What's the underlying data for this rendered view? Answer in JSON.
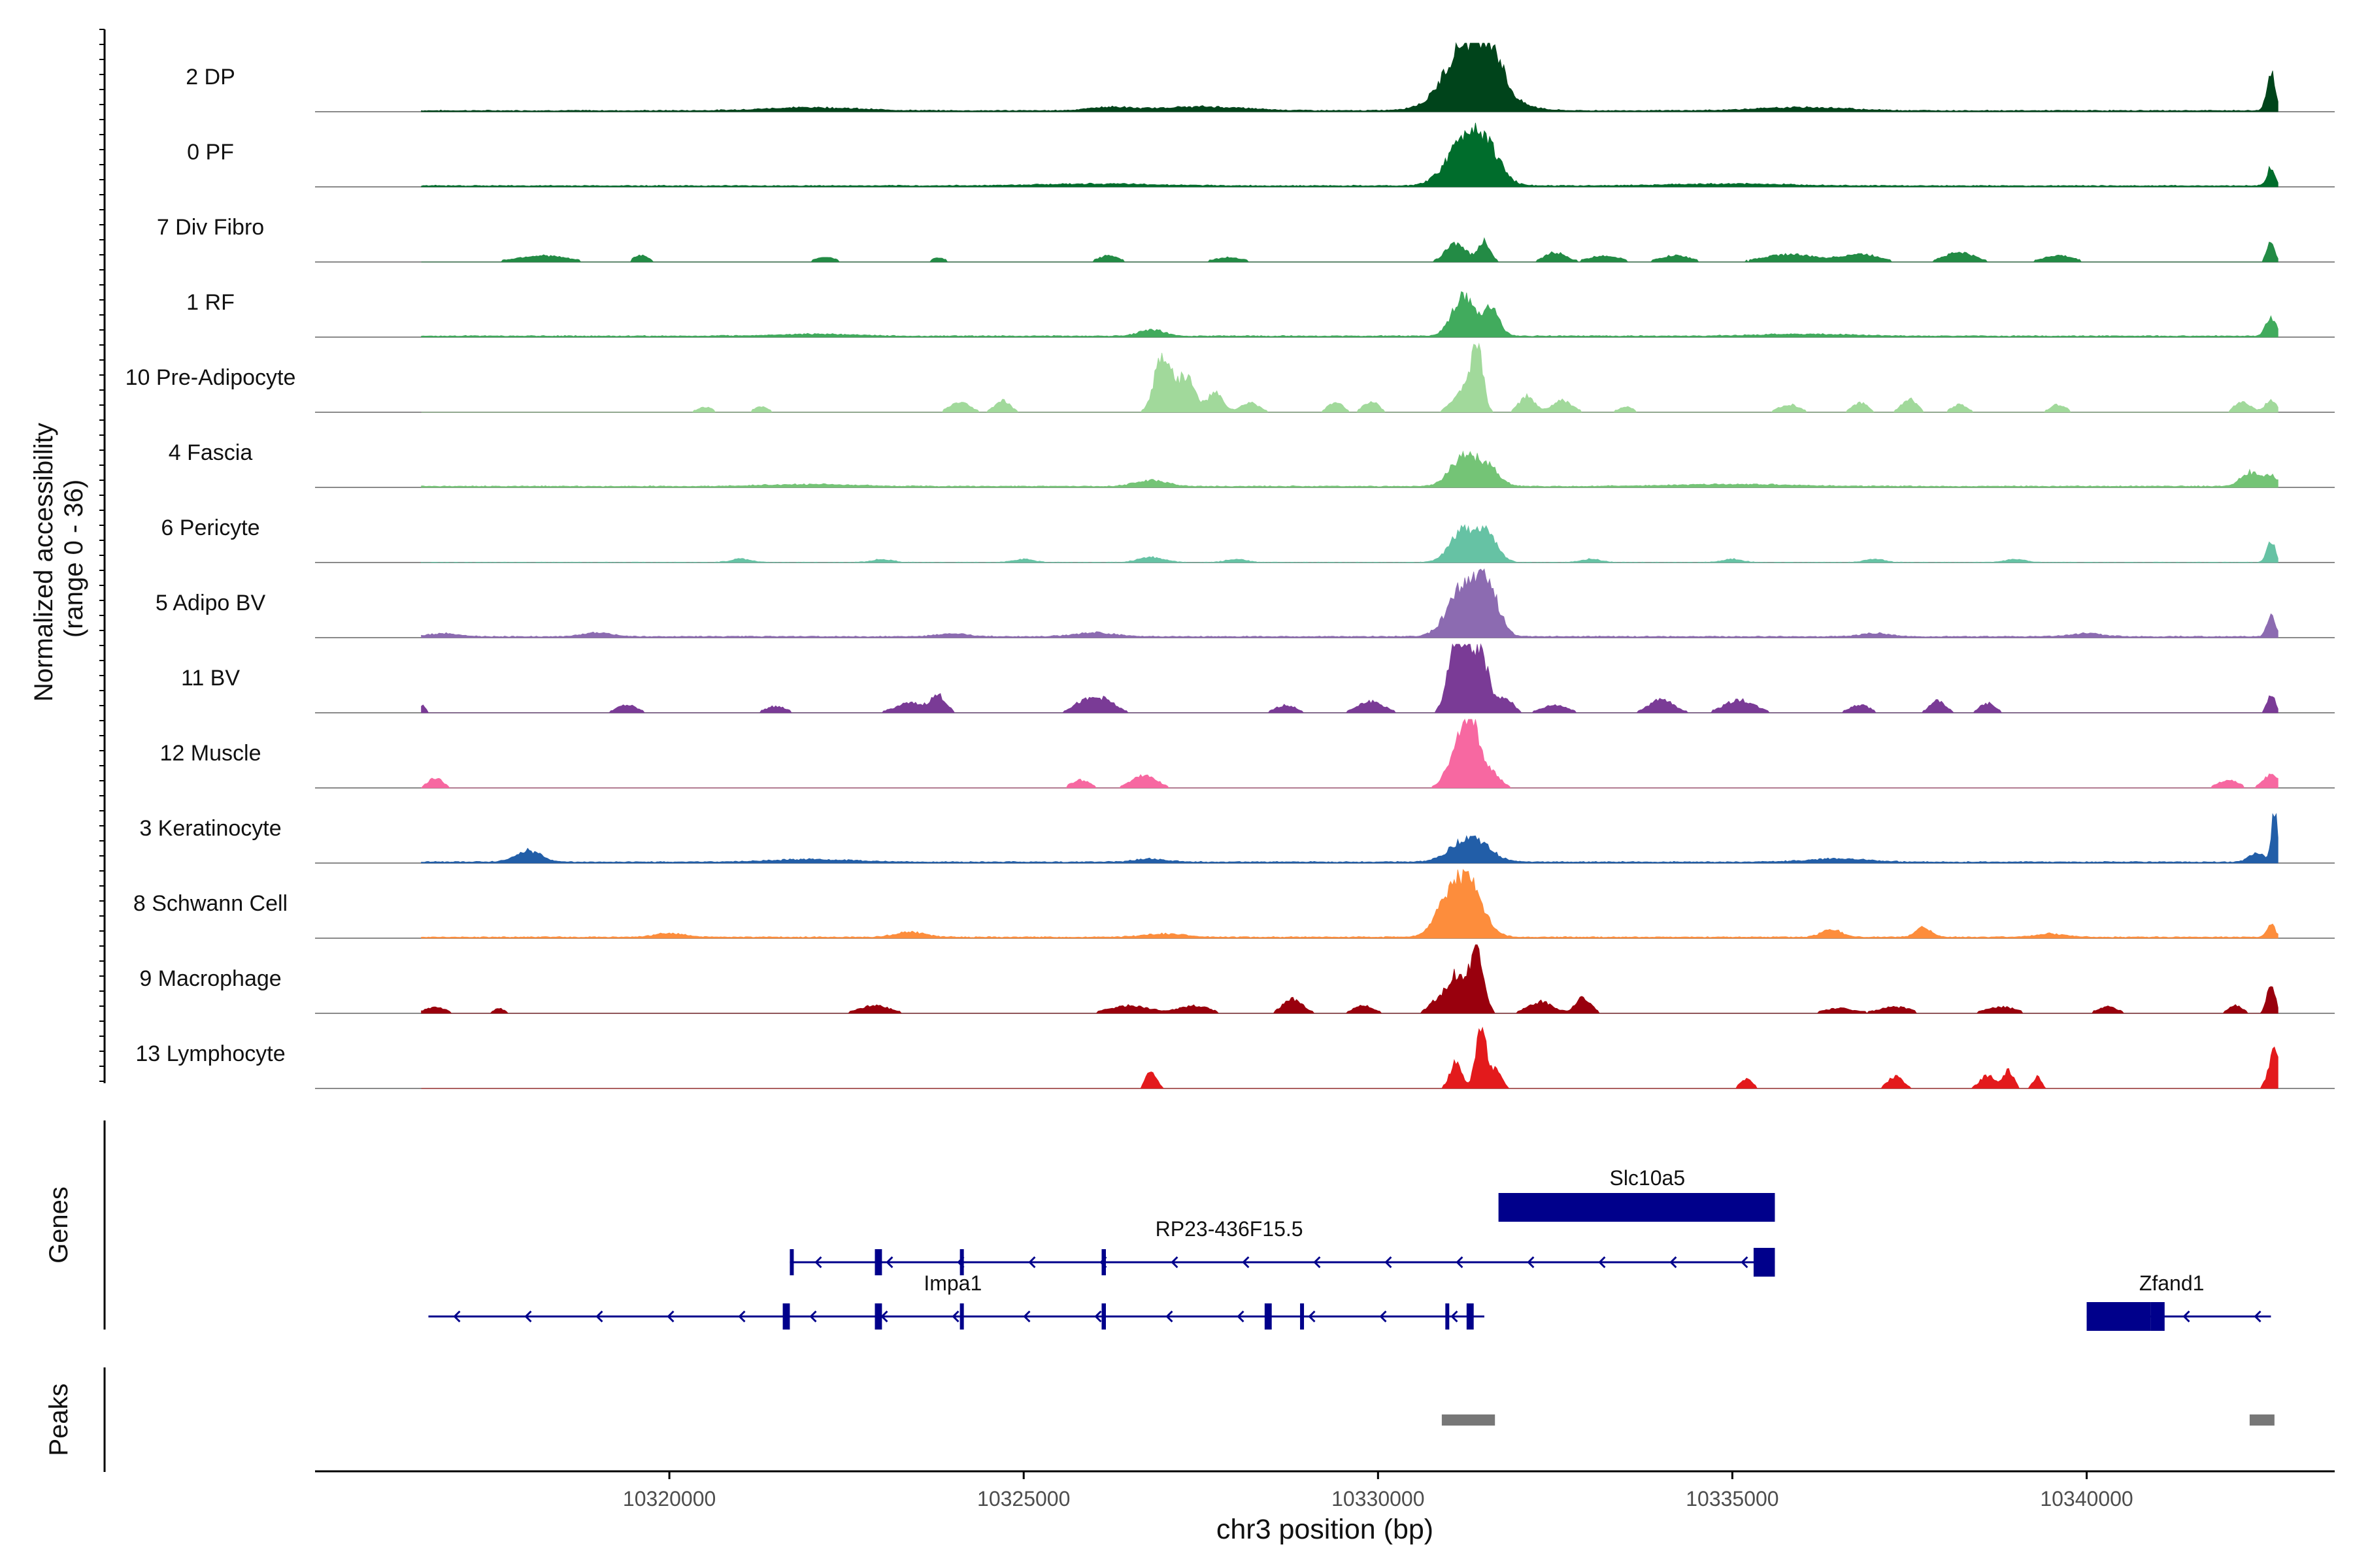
{
  "chart_data": {
    "type": "area",
    "title": "",
    "x_axis": {
      "label": "chr3 position (bp)",
      "range": [
        10315000,
        10343500
      ],
      "ticks": [
        10320000,
        10325000,
        10330000,
        10335000,
        10340000
      ],
      "tick_labels": [
        "10320000",
        "10325000",
        "10330000",
        "10335000",
        "10340000"
      ]
    },
    "y_axis": {
      "label_line1": "Normalized accessibility",
      "label_line2": "(range 0 - 36)",
      "range": [
        0,
        36
      ]
    },
    "tracks": [
      {
        "name": "2 DP",
        "color": "#00441b",
        "style": "dense",
        "peaks": [
          [
            10331200,
            0.65,
            320
          ],
          [
            10331600,
            0.62,
            220
          ],
          [
            10331350,
            0.45,
            600
          ],
          [
            10342600,
            0.6,
            80
          ],
          [
            10327500,
            0.06,
            900
          ],
          [
            10322000,
            0.05,
            900
          ],
          [
            10336000,
            0.05,
            900
          ],
          [
            10326200,
            0.05,
            400
          ]
        ]
      },
      {
        "name": "0 PF",
        "color": "#006d2c",
        "style": "dense",
        "peaks": [
          [
            10331200,
            0.6,
            350
          ],
          [
            10331500,
            0.55,
            300
          ],
          [
            10342600,
            0.28,
            80
          ],
          [
            10326000,
            0.03,
            1200
          ],
          [
            10335000,
            0.03,
            1200
          ]
        ]
      },
      {
        "name": "7 Div Fibro",
        "color": "#238b45",
        "style": "blocky",
        "peaks": [
          [
            10331100,
            0.3,
            200
          ],
          [
            10331500,
            0.32,
            120
          ],
          [
            10342600,
            0.3,
            80
          ],
          [
            10318200,
            0.1,
            500
          ],
          [
            10319600,
            0.1,
            150
          ],
          [
            10322200,
            0.08,
            200
          ],
          [
            10323800,
            0.06,
            150
          ],
          [
            10326200,
            0.1,
            200
          ],
          [
            10327900,
            0.07,
            300
          ],
          [
            10332500,
            0.15,
            200
          ],
          [
            10333200,
            0.1,
            300
          ],
          [
            10334200,
            0.1,
            300
          ],
          [
            10335800,
            0.12,
            500
          ],
          [
            10336800,
            0.12,
            400
          ],
          [
            10338200,
            0.15,
            300
          ],
          [
            10339600,
            0.1,
            300
          ]
        ]
      },
      {
        "name": "1 RF",
        "color": "#41ab5d",
        "style": "dense",
        "peaks": [
          [
            10331200,
            0.6,
            220
          ],
          [
            10331600,
            0.42,
            160
          ],
          [
            10326800,
            0.1,
            250
          ],
          [
            10342600,
            0.3,
            100
          ],
          [
            10322000,
            0.03,
            800
          ],
          [
            10336000,
            0.03,
            900
          ]
        ]
      },
      {
        "name": "10 Pre-Adipocyte",
        "color": "#a1d99b",
        "style": "blocky",
        "peaks": [
          [
            10331400,
            1.0,
            110
          ],
          [
            10331200,
            0.35,
            200
          ],
          [
            10327000,
            0.7,
            160
          ],
          [
            10327300,
            0.55,
            160
          ],
          [
            10326900,
            0.3,
            140
          ],
          [
            10327700,
            0.3,
            160
          ],
          [
            10328200,
            0.15,
            180
          ],
          [
            10332100,
            0.25,
            150
          ],
          [
            10332600,
            0.18,
            200
          ],
          [
            10329900,
            0.17,
            150
          ],
          [
            10329400,
            0.15,
            150
          ],
          [
            10324700,
            0.18,
            150
          ],
          [
            10324100,
            0.15,
            200
          ],
          [
            10335800,
            0.12,
            200
          ],
          [
            10336800,
            0.15,
            150
          ],
          [
            10337500,
            0.2,
            150
          ],
          [
            10338200,
            0.12,
            150
          ],
          [
            10339600,
            0.12,
            150
          ],
          [
            10342200,
            0.18,
            150
          ],
          [
            10342600,
            0.18,
            120
          ],
          [
            10320500,
            0.08,
            150
          ],
          [
            10321300,
            0.08,
            150
          ],
          [
            10333500,
            0.08,
            150
          ]
        ]
      },
      {
        "name": "4 Fascia",
        "color": "#74c476",
        "style": "dense",
        "peaks": [
          [
            10331200,
            0.45,
            260
          ],
          [
            10331550,
            0.3,
            220
          ],
          [
            10326800,
            0.1,
            300
          ],
          [
            10342300,
            0.22,
            180
          ],
          [
            10342600,
            0.18,
            120
          ],
          [
            10322000,
            0.03,
            900
          ],
          [
            10335000,
            0.03,
            1200
          ]
        ]
      },
      {
        "name": "6 Pericyte",
        "color": "#66c2a4",
        "style": "sparse",
        "peaks": [
          [
            10331200,
            0.5,
            250
          ],
          [
            10331550,
            0.42,
            200
          ],
          [
            10326800,
            0.08,
            250
          ],
          [
            10342600,
            0.35,
            80
          ],
          [
            10321000,
            0.05,
            200
          ],
          [
            10323000,
            0.05,
            200
          ],
          [
            10325000,
            0.05,
            200
          ],
          [
            10328000,
            0.05,
            200
          ],
          [
            10333000,
            0.05,
            200
          ],
          [
            10335000,
            0.05,
            200
          ],
          [
            10337000,
            0.05,
            200
          ],
          [
            10339000,
            0.05,
            200
          ]
        ]
      },
      {
        "name": "5 Adipo BV",
        "color": "#8c6bb1",
        "style": "dense",
        "peaks": [
          [
            10331200,
            0.75,
            300
          ],
          [
            10331550,
            0.7,
            220
          ],
          [
            10342600,
            0.35,
            80
          ],
          [
            10326000,
            0.06,
            400
          ],
          [
            10316800,
            0.05,
            300
          ],
          [
            10319000,
            0.06,
            300
          ],
          [
            10324000,
            0.05,
            300
          ],
          [
            10337000,
            0.05,
            300
          ],
          [
            10340000,
            0.05,
            300
          ]
        ]
      },
      {
        "name": "11 BV",
        "color": "#7a3b96",
        "style": "blocky",
        "peaks": [
          [
            10331100,
            0.95,
            160
          ],
          [
            10331450,
            0.85,
            160
          ],
          [
            10331250,
            0.45,
            200
          ],
          [
            10316500,
            0.12,
            80
          ],
          [
            10319400,
            0.12,
            200
          ],
          [
            10321500,
            0.1,
            200
          ],
          [
            10323400,
            0.15,
            300
          ],
          [
            10323800,
            0.25,
            150
          ],
          [
            10325800,
            0.12,
            200
          ],
          [
            10326100,
            0.22,
            250
          ],
          [
            10328700,
            0.12,
            200
          ],
          [
            10329900,
            0.18,
            250
          ],
          [
            10331800,
            0.22,
            150
          ],
          [
            10332500,
            0.12,
            250
          ],
          [
            10334000,
            0.2,
            250
          ],
          [
            10335100,
            0.2,
            300
          ],
          [
            10336800,
            0.12,
            200
          ],
          [
            10337900,
            0.2,
            150
          ],
          [
            10338600,
            0.15,
            150
          ],
          [
            10342600,
            0.3,
            80
          ]
        ]
      },
      {
        "name": "12 Muscle",
        "color": "#f768a1",
        "style": "blocky",
        "peaks": [
          [
            10331300,
            1.0,
            160
          ],
          [
            10331100,
            0.45,
            200
          ],
          [
            10331550,
            0.3,
            200
          ],
          [
            10316700,
            0.15,
            150
          ],
          [
            10325800,
            0.12,
            180
          ],
          [
            10326700,
            0.2,
            250
          ],
          [
            10342000,
            0.12,
            200
          ],
          [
            10342600,
            0.2,
            150
          ]
        ]
      },
      {
        "name": "3 Keratinocyte",
        "color": "#225ea8",
        "style": "dense",
        "peaks": [
          [
            10331300,
            0.4,
            350
          ],
          [
            10318000,
            0.18,
            250
          ],
          [
            10342650,
            0.8,
            60
          ],
          [
            10342400,
            0.15,
            150
          ],
          [
            10326800,
            0.05,
            300
          ],
          [
            10336500,
            0.05,
            600
          ],
          [
            10322000,
            0.04,
            800
          ]
        ]
      },
      {
        "name": "8 Schwann Cell",
        "color": "#fd8d3c",
        "style": "dense",
        "peaks": [
          [
            10331250,
            0.85,
            300
          ],
          [
            10330950,
            0.35,
            250
          ],
          [
            10320000,
            0.06,
            300
          ],
          [
            10323400,
            0.08,
            300
          ],
          [
            10336400,
            0.12,
            200
          ],
          [
            10337700,
            0.15,
            150
          ],
          [
            10342600,
            0.2,
            80
          ],
          [
            10327000,
            0.05,
            400
          ],
          [
            10339500,
            0.05,
            300
          ]
        ]
      },
      {
        "name": "9 Macrophage",
        "color": "#99000d",
        "style": "blocky",
        "peaks": [
          [
            10331400,
            1.0,
            130
          ],
          [
            10331100,
            0.6,
            200
          ],
          [
            10330800,
            0.15,
            150
          ],
          [
            10316700,
            0.1,
            200
          ],
          [
            10317600,
            0.08,
            100
          ],
          [
            10322900,
            0.12,
            300
          ],
          [
            10326500,
            0.12,
            400
          ],
          [
            10327400,
            0.12,
            300
          ],
          [
            10328800,
            0.22,
            200
          ],
          [
            10329800,
            0.12,
            200
          ],
          [
            10332300,
            0.18,
            250
          ],
          [
            10332900,
            0.25,
            150
          ],
          [
            10336500,
            0.08,
            300
          ],
          [
            10337300,
            0.1,
            300
          ],
          [
            10338800,
            0.1,
            300
          ],
          [
            10340300,
            0.1,
            200
          ],
          [
            10342100,
            0.12,
            150
          ],
          [
            10342600,
            0.5,
            80
          ]
        ]
      },
      {
        "name": "13 Lymphocyte",
        "color": "#e31a1c",
        "style": "blocky",
        "peaks": [
          [
            10331450,
            1.0,
            100
          ],
          [
            10331100,
            0.4,
            120
          ],
          [
            10331650,
            0.3,
            120
          ],
          [
            10326800,
            0.28,
            100
          ],
          [
            10335200,
            0.15,
            120
          ],
          [
            10337300,
            0.18,
            150
          ],
          [
            10338600,
            0.2,
            150
          ],
          [
            10338900,
            0.28,
            100
          ],
          [
            10339300,
            0.18,
            80
          ],
          [
            10342650,
            0.6,
            110
          ]
        ]
      }
    ],
    "genes_panel": {
      "label": "Genes",
      "color": "#00008b",
      "genes": [
        {
          "name": "Slc10a5",
          "start": 10331700,
          "end": 10335600,
          "strand": "-",
          "row": 0,
          "exons": [
            [
              10331700,
              10335600
            ]
          ],
          "label_pos": 10333800
        },
        {
          "name": "RP23-436F15.5",
          "start": 10321700,
          "end": 10335600,
          "strand": "-",
          "row": 1,
          "exons": [
            [
              10321700,
              10321750
            ],
            [
              10322900,
              10323000
            ],
            [
              10324100,
              10324130
            ],
            [
              10326100,
              10326160
            ],
            [
              10335300,
              10335600
            ]
          ],
          "label_pos": 10327900
        },
        {
          "name": "Impa1",
          "start": 10316600,
          "end": 10331500,
          "strand": "-",
          "row": 2,
          "exons": [
            [
              10321600,
              10321700
            ],
            [
              10322900,
              10323000
            ],
            [
              10324100,
              10324130
            ],
            [
              10326100,
              10326160
            ],
            [
              10328400,
              10328500
            ],
            [
              10328900,
              10328950
            ],
            [
              10330950,
              10331000
            ],
            [
              10331250,
              10331350
            ]
          ],
          "label_pos": 10324000
        },
        {
          "name": "Zfand1",
          "start": 10340000,
          "end": 10342600,
          "strand": "-",
          "row": 2,
          "exons": [
            [
              10340000,
              10340900
            ],
            [
              10340900,
              10341100
            ]
          ],
          "label_pos": 10341200
        }
      ]
    },
    "peaks_panel": {
      "label": "Peaks",
      "color": "#777777",
      "regions": [
        [
          10330900,
          10331650
        ],
        [
          10342300,
          10342650
        ]
      ]
    }
  }
}
